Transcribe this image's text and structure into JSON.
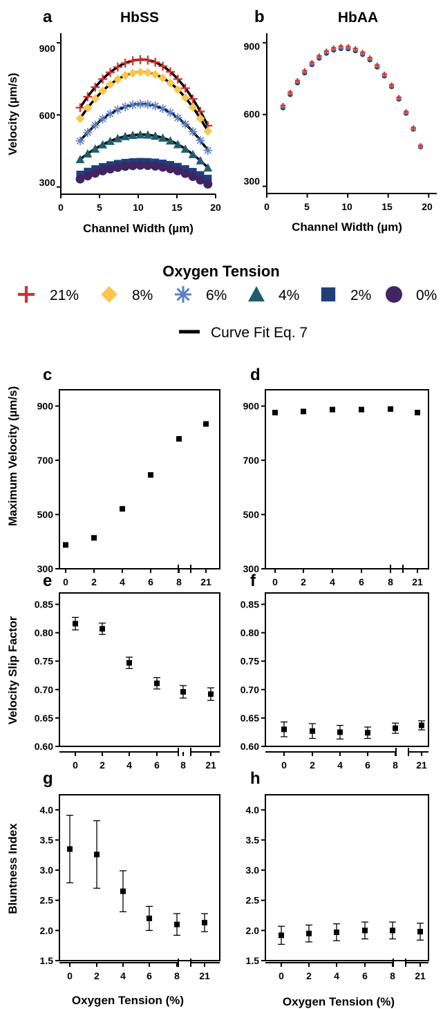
{
  "colors": {
    "21": "#d32f2f",
    "8": "#f9c74f",
    "6": "#5b7fc7",
    "4": "#1f5f6b",
    "2": "#203f7a",
    "0": "#3f2563",
    "fit": "#000000"
  },
  "legend": {
    "title": "Oxygen Tension",
    "items": [
      {
        "key": "21",
        "label": "21%",
        "marker": "plus"
      },
      {
        "key": "8",
        "label": "8%",
        "marker": "diamond"
      },
      {
        "key": "6",
        "label": "6%",
        "marker": "asterisk"
      },
      {
        "key": "4",
        "label": "4%",
        "marker": "triangle"
      },
      {
        "key": "2",
        "label": "2%",
        "marker": "square"
      },
      {
        "key": "0",
        "label": "0%",
        "marker": "circle"
      }
    ],
    "fit_label": "Curve Fit Eq. 7"
  },
  "chart_data": [
    {
      "id": "a",
      "panel_label": "a",
      "title": "HbSS",
      "type": "scatter",
      "xlabel": "Channel Width (µm)",
      "ylabel": "Velocity (µm/s)",
      "xlim": [
        0,
        20
      ],
      "ylim": [
        270,
        940
      ],
      "xticks": [
        "0",
        "5",
        "10",
        "15",
        "20"
      ],
      "xtick_values": [
        0,
        5,
        10,
        15,
        20
      ],
      "yticks": [
        "300",
        "600",
        "900"
      ],
      "ytick_values": [
        300,
        600,
        900
      ],
      "curve_fit": true,
      "series": [
        {
          "name": "21%",
          "key": "21",
          "marker": "plus",
          "width_start": 2.5,
          "width_end": 19,
          "center": 10.5,
          "peak": 830,
          "edge": 630,
          "edge_end": 555
        },
        {
          "name": "8%",
          "key": "8",
          "marker": "diamond",
          "width_start": 2.5,
          "width_end": 19,
          "center": 10.5,
          "peak": 778,
          "edge": 585,
          "edge_end": 532
        },
        {
          "name": "6%",
          "key": "6",
          "marker": "asterisk",
          "width_start": 2.5,
          "width_end": 19,
          "center": 10.5,
          "peak": 645,
          "edge": 492,
          "edge_end": 452
        },
        {
          "name": "4%",
          "key": "4",
          "marker": "triangle",
          "width_start": 2.5,
          "width_end": 19,
          "center": 10.5,
          "peak": 518,
          "edge": 415,
          "edge_end": 380
        },
        {
          "name": "2%",
          "key": "2",
          "marker": "square",
          "width_start": 2.5,
          "width_end": 19,
          "center": 10.5,
          "peak": 405,
          "edge": 352,
          "edge_end": 335
        },
        {
          "name": "0%",
          "key": "0",
          "marker": "circle",
          "width_start": 2.5,
          "width_end": 19,
          "center": 10.5,
          "peak": 390,
          "edge": 333,
          "edge_end": 312
        }
      ]
    },
    {
      "id": "b",
      "panel_label": "b",
      "title": "HbAA",
      "type": "scatter",
      "xlabel": "Channel Width (µm)",
      "ylabel": "",
      "xlim": [
        0,
        21
      ],
      "ylim": [
        270,
        940
      ],
      "xticks": [
        "0",
        "5",
        "10",
        "15",
        "20"
      ],
      "xtick_values": [
        0,
        5,
        10,
        15,
        20
      ],
      "yticks": [
        "300",
        "600",
        "900"
      ],
      "ytick_values": [
        300,
        600,
        900
      ],
      "curve_fit": false,
      "series": [
        {
          "name": "21%",
          "key": "21",
          "marker": "plus",
          "width_start": 2,
          "width_end": 19,
          "center": 9.5,
          "peak": 885,
          "edge": 638,
          "edge_end": 470
        },
        {
          "name": "8%",
          "key": "8",
          "marker": "diamond",
          "width_start": 2,
          "width_end": 19,
          "center": 9.5,
          "peak": 884,
          "edge": 637,
          "edge_end": 469
        },
        {
          "name": "6%",
          "key": "6",
          "marker": "asterisk",
          "width_start": 2,
          "width_end": 19,
          "center": 9.5,
          "peak": 882,
          "edge": 635,
          "edge_end": 468
        },
        {
          "name": "4%",
          "key": "4",
          "marker": "triangle",
          "width_start": 2,
          "width_end": 19,
          "center": 9.5,
          "peak": 880,
          "edge": 632,
          "edge_end": 467
        },
        {
          "name": "2%",
          "key": "2",
          "marker": "square",
          "width_start": 2,
          "width_end": 19,
          "center": 9.5,
          "peak": 878,
          "edge": 630,
          "edge_end": 466
        },
        {
          "name": "0%",
          "key": "0",
          "marker": "circle",
          "width_start": 2,
          "width_end": 19,
          "center": 9.5,
          "peak": 876,
          "edge": 628,
          "edge_end": 465
        }
      ]
    },
    {
      "id": "c",
      "panel_label": "c",
      "type": "scatter",
      "ylabel": "Maximum Velocity (µm/s)",
      "xlabel": "",
      "categories": [
        "0",
        "2",
        "4",
        "6",
        "8",
        "21"
      ],
      "ylim": [
        300,
        960
      ],
      "yticks": [
        "300",
        "500",
        "700",
        "900"
      ],
      "ytick_values": [
        300,
        500,
        700,
        900
      ],
      "values": [
        388,
        414,
        521,
        646,
        779,
        834
      ],
      "errors": null
    },
    {
      "id": "d",
      "panel_label": "d",
      "type": "scatter",
      "ylabel": "",
      "xlabel": "",
      "categories": [
        "0",
        "2",
        "4",
        "6",
        "8",
        "21"
      ],
      "ylim": [
        300,
        960
      ],
      "yticks": [
        "300",
        "500",
        "700",
        "900"
      ],
      "ytick_values": [
        300,
        500,
        700,
        900
      ],
      "values": [
        876,
        880,
        887,
        887,
        889,
        876
      ],
      "errors": null
    },
    {
      "id": "e",
      "panel_label": "e",
      "type": "scatter",
      "ylabel": "Velocity Slip Factor",
      "xlabel": "",
      "categories": [
        "0",
        "2",
        "4",
        "6",
        "8",
        "21"
      ],
      "ylim": [
        0.6,
        0.87
      ],
      "yticks": [
        "0.60",
        "0.65",
        "0.70",
        "0.75",
        "0.80",
        "0.85"
      ],
      "ytick_values": [
        0.6,
        0.65,
        0.7,
        0.75,
        0.8,
        0.85
      ],
      "values": [
        0.816,
        0.807,
        0.747,
        0.711,
        0.696,
        0.692
      ],
      "errors": [
        0.011,
        0.01,
        0.01,
        0.01,
        0.011,
        0.011
      ]
    },
    {
      "id": "f",
      "panel_label": "f",
      "type": "scatter",
      "ylabel": "",
      "xlabel": "",
      "categories": [
        "0",
        "2",
        "4",
        "6",
        "8",
        "21"
      ],
      "ylim": [
        0.6,
        0.87
      ],
      "yticks": [
        "0.60",
        "0.65",
        "0.70",
        "0.75",
        "0.80",
        "0.85"
      ],
      "ytick_values": [
        0.6,
        0.65,
        0.7,
        0.75,
        0.8,
        0.85
      ],
      "values": [
        0.63,
        0.627,
        0.625,
        0.624,
        0.632,
        0.637
      ],
      "errors": [
        0.013,
        0.013,
        0.012,
        0.01,
        0.009,
        0.008
      ]
    },
    {
      "id": "g",
      "panel_label": "g",
      "type": "scatter",
      "ylabel": "Bluntness Index",
      "xlabel": "Oxygen Tension (%)",
      "categories": [
        "0",
        "2",
        "4",
        "6",
        "8",
        "21"
      ],
      "ylim": [
        1.5,
        4.25
      ],
      "yticks": [
        "1.5",
        "2.0",
        "2.5",
        "3.0",
        "3.5",
        "4.0"
      ],
      "ytick_values": [
        1.5,
        2.0,
        2.5,
        3.0,
        3.5,
        4.0
      ],
      "values": [
        3.35,
        3.26,
        2.65,
        2.2,
        2.1,
        2.13
      ],
      "errors": [
        0.56,
        0.56,
        0.34,
        0.2,
        0.18,
        0.15
      ]
    },
    {
      "id": "h",
      "panel_label": "h",
      "type": "scatter",
      "ylabel": "",
      "xlabel": "Oxygen Tension (%)",
      "categories": [
        "0",
        "2",
        "4",
        "6",
        "8",
        "21"
      ],
      "ylim": [
        1.5,
        4.25
      ],
      "yticks": [
        "1.5",
        "2.0",
        "2.5",
        "3.0",
        "3.5",
        "4.0"
      ],
      "ytick_values": [
        1.5,
        2.0,
        2.5,
        3.0,
        3.5,
        4.0
      ],
      "values": [
        1.92,
        1.95,
        1.97,
        2.0,
        2.0,
        1.98
      ],
      "errors": [
        0.15,
        0.14,
        0.14,
        0.14,
        0.14,
        0.14
      ]
    }
  ]
}
